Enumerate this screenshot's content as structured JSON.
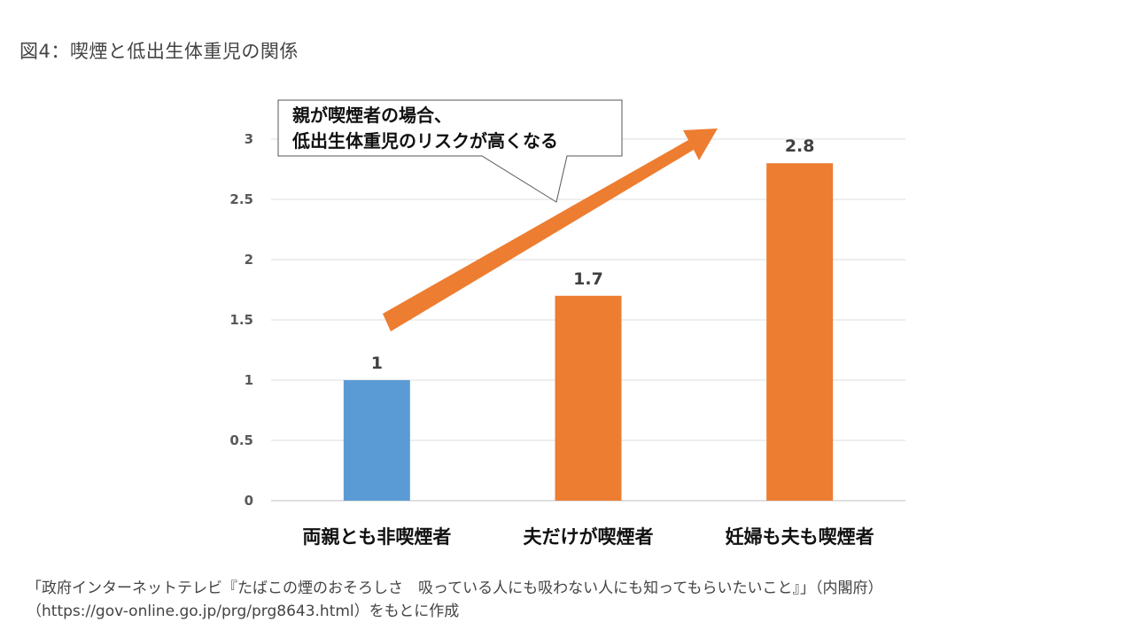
{
  "figure_title": "図4：喫煙と低出生体重児の関係",
  "callout": {
    "line1": "親が喫煙者の場合、",
    "line2": "低出生体重児のリスクが高くなる"
  },
  "source": {
    "line1": "「政府インターネットテレビ『たばこの煙のおそろしさ　吸っている人にも吸わない人にも知ってもらいたいこと』」（内閣府）",
    "line2": "（https://gov-online.go.jp/prg/prg8643.html）をもとに作成"
  },
  "chart_data": {
    "type": "bar",
    "title": "",
    "xlabel": "",
    "ylabel": "",
    "categories": [
      "両親とも非喫煙者",
      "夫だけが喫煙者",
      "妊婦も夫も喫煙者"
    ],
    "values": [
      1,
      1.7,
      2.8
    ],
    "value_labels": [
      "1",
      "1.7",
      "2.8"
    ],
    "bar_colors": [
      "#5b9bd5",
      "#ed7d31",
      "#ed7d31"
    ],
    "ylim": [
      0,
      3
    ],
    "yticks": [
      "0",
      "0.5",
      "1",
      "1.5",
      "2",
      "2.5",
      "3"
    ],
    "ytick_values": [
      0,
      0.5,
      1,
      1.5,
      2,
      2.5,
      3
    ],
    "grid": true,
    "legend": "none",
    "annotation_arrow_color": "#ed7d31"
  }
}
